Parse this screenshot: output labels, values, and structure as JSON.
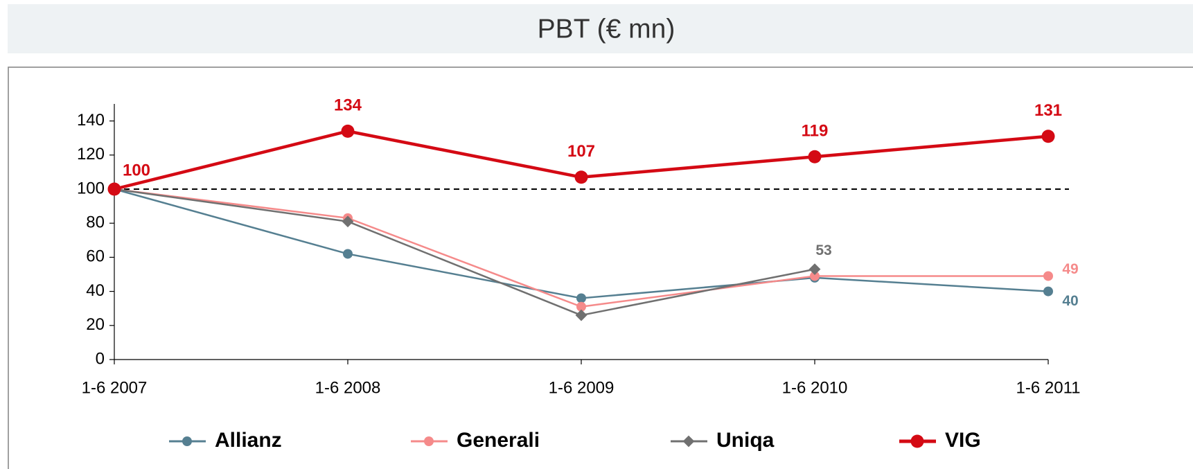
{
  "chart_data": {
    "type": "line",
    "title": "PBT (€ mn)",
    "categories": [
      "1-6 2007",
      "1-6 2008",
      "1-6 2009",
      "1-6 2010",
      "1-6 2011"
    ],
    "ylim": [
      0,
      150
    ],
    "yticks": [
      0,
      20,
      40,
      60,
      80,
      100,
      120,
      140
    ],
    "reference_line": 100,
    "series": [
      {
        "name": "Allianz",
        "color": "#557f91",
        "marker": "circle",
        "values": [
          100,
          62,
          36,
          48,
          40
        ],
        "value_labels": [
          null,
          null,
          null,
          null,
          "40"
        ]
      },
      {
        "name": "Generali",
        "color": "#f58a8a",
        "marker": "circle",
        "values": [
          100,
          83,
          31,
          49,
          49
        ],
        "value_labels": [
          null,
          null,
          null,
          null,
          "49"
        ]
      },
      {
        "name": "Uniqa",
        "color": "#707070",
        "marker": "diamond",
        "values": [
          100,
          81,
          26,
          53,
          null
        ],
        "value_labels": [
          null,
          null,
          null,
          "53",
          null
        ]
      },
      {
        "name": "VIG",
        "color": "#d40a14",
        "marker": "circle",
        "values": [
          100,
          134,
          107,
          119,
          131
        ],
        "value_labels": [
          "100",
          "134",
          "107",
          "119",
          "131"
        ]
      }
    ],
    "legend": "bottom"
  }
}
